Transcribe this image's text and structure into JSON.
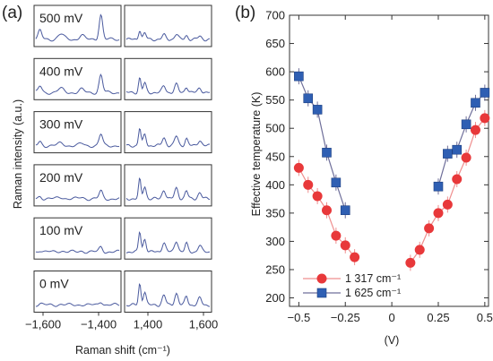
{
  "panel_a": {
    "label": "(a)",
    "y_axis_label": "Raman intensity (a.u.)",
    "x_axis_label": "Raman shift (cm⁻¹)",
    "left_ticks": [
      "−1,600",
      "−1,400"
    ],
    "right_ticks": [
      "1,400",
      "1,600"
    ],
    "voltages": [
      "500 mV",
      "400 mV",
      "300 mV",
      "200 mV",
      "100 mV",
      "0 mV"
    ],
    "line_color": "#4a5a9e"
  },
  "chart_data": {
    "type": "scatter",
    "panel_label": "(b)",
    "xlabel": "(V)",
    "ylabel": "Effective temperature (K)",
    "xlim": [
      -0.55,
      0.52
    ],
    "ylim": [
      185,
      700
    ],
    "x_ticks": [
      -0.5,
      -0.25,
      0,
      0.25,
      0.5
    ],
    "x_tick_labels": [
      "−0.5",
      "−0.25",
      "0",
      "0.25",
      "0.5"
    ],
    "y_ticks": [
      200,
      250,
      300,
      350,
      400,
      450,
      500,
      550,
      600,
      650,
      700
    ],
    "y_tick_labels": [
      "200",
      "250",
      "300",
      "350",
      "400",
      "450",
      "500",
      "550",
      "600",
      "650",
      "700"
    ],
    "legend_position": "bottom-left",
    "series": [
      {
        "name": "1 317 cm⁻¹",
        "marker": "circle",
        "color": "#e8383a",
        "line_color": "#ef8f8f",
        "segments": [
          {
            "x": [
              -0.5,
              -0.45,
              -0.4,
              -0.35,
              -0.3,
              -0.25,
              -0.2
            ],
            "y": [
              430,
              400,
              380,
              355,
              310,
              293,
              272
            ]
          },
          {
            "x": [
              0.1,
              0.15,
              0.2,
              0.25,
              0.3,
              0.35,
              0.4,
              0.45,
              0.5
            ],
            "y": [
              262,
              285,
              323,
              350,
              365,
              410,
              448,
              497,
              518
            ]
          }
        ]
      },
      {
        "name": "1 625 cm⁻¹",
        "marker": "square",
        "color": "#2f5fb3",
        "line_color": "#6f6f9a",
        "segments": [
          {
            "x": [
              -0.5,
              -0.45,
              -0.4,
              -0.35,
              -0.3,
              -0.25
            ],
            "y": [
              592,
              553,
              533,
              457,
              404,
              355
            ]
          },
          {
            "x": [
              0.25,
              0.3,
              0.35,
              0.4,
              0.45,
              0.5
            ],
            "y": [
              397,
              455,
              462,
              507,
              545,
              563
            ]
          }
        ]
      }
    ]
  }
}
